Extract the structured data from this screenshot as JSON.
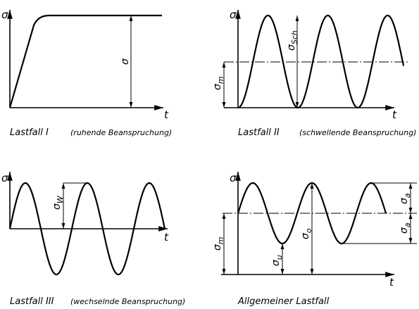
{
  "panels": [
    {
      "axis_y": "σ",
      "axis_x": "t",
      "title": "Lastfall I",
      "subtitle": "(ruhende Beanspruchung)",
      "annotations": [
        {
          "symbol": "σ"
        }
      ]
    },
    {
      "axis_y": "σ",
      "axis_x": "t",
      "title": "Lastfall II",
      "subtitle": "(schwellende Beanspruchung)",
      "annotations": [
        {
          "symbol": "σ",
          "sub": "Sch"
        },
        {
          "symbol": "σ",
          "sub": "m"
        }
      ]
    },
    {
      "axis_y": "σ",
      "axis_x": "t",
      "title": "Lastfall III",
      "subtitle": "(wechselnde Beanspruchung)",
      "annotations": [
        {
          "symbol": "σ",
          "sub": "W"
        }
      ]
    },
    {
      "axis_y": "σ",
      "axis_x": "t",
      "title": "Allgemeiner Lastfall",
      "annotations": [
        {
          "symbol": "σ",
          "sub": "a"
        },
        {
          "symbol": "σ",
          "sub": "a"
        },
        {
          "symbol": "σ",
          "sub": "m"
        },
        {
          "symbol": "σ",
          "sub": "u"
        },
        {
          "symbol": "σ",
          "sub": "o"
        }
      ]
    }
  ]
}
